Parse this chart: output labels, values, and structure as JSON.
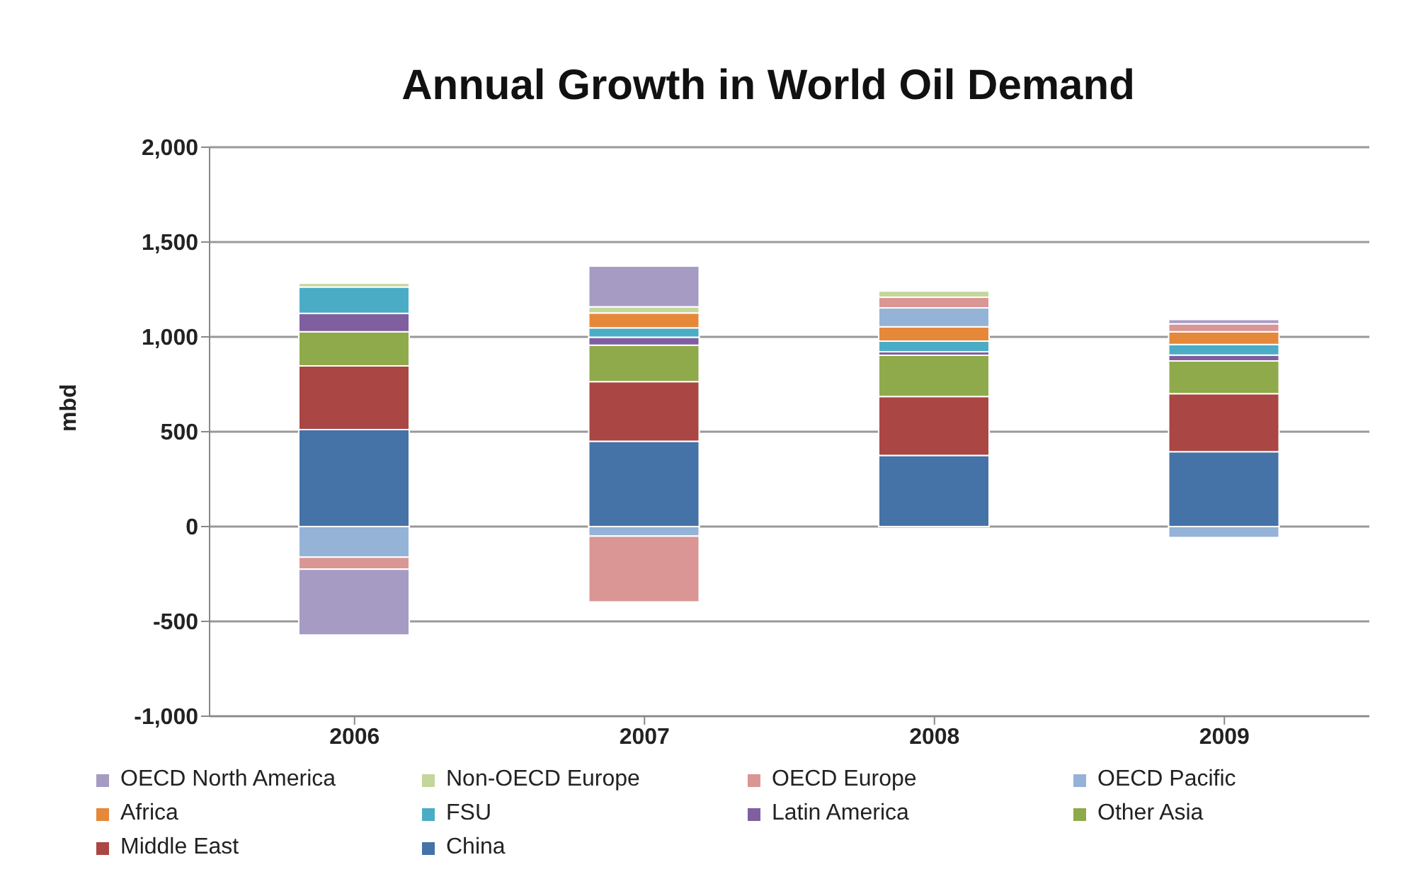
{
  "chart_data": {
    "type": "bar",
    "title": "Annual Growth in World Oil Demand",
    "ylabel": "mbd",
    "stacked": true,
    "categories": [
      "2006",
      "2007",
      "2008",
      "2009"
    ],
    "series": [
      {
        "name": "China",
        "color": "#4572a7",
        "values": [
          511,
          450,
          375,
          395
        ]
      },
      {
        "name": "Middle East",
        "color": "#aa4643",
        "values": [
          336,
          314,
          311,
          306
        ]
      },
      {
        "name": "Other Asia",
        "color": "#8eaa4a",
        "values": [
          180,
          192,
          217,
          172
        ]
      },
      {
        "name": "Latin America",
        "color": "#7f5fa0",
        "values": [
          97,
          42,
          19,
          31
        ]
      },
      {
        "name": "FSU",
        "color": "#4bacc6",
        "values": [
          139,
          50,
          56,
          56
        ]
      },
      {
        "name": "Africa",
        "color": "#e6883a",
        "values": [
          0,
          78,
          75,
          67
        ]
      },
      {
        "name": "OECD Pacific",
        "color": "#95b3d7",
        "values": [
          -161,
          -50,
          100,
          -58
        ]
      },
      {
        "name": "OECD Europe",
        "color": "#d99694",
        "values": [
          -64,
          -347,
          56,
          42
        ]
      },
      {
        "name": "Non-OECD Europe",
        "color": "#c3d69b",
        "values": [
          20,
          33,
          33,
          0
        ]
      },
      {
        "name": "OECD North America",
        "color": "#a69bc3",
        "values": [
          -347,
          214,
          0,
          22
        ]
      }
    ],
    "ylim": [
      -1000,
      2000
    ],
    "yticks": [
      {
        "value": -1000,
        "label": "-1,000"
      },
      {
        "value": -500,
        "label": "-500"
      },
      {
        "value": 0,
        "label": "0"
      },
      {
        "value": 500,
        "label": "500"
      },
      {
        "value": 1000,
        "label": "1,000"
      },
      {
        "value": 1500,
        "label": "1,500"
      },
      {
        "value": 2000,
        "label": "2,000"
      }
    ],
    "grid": "y",
    "legend": "bottom"
  }
}
